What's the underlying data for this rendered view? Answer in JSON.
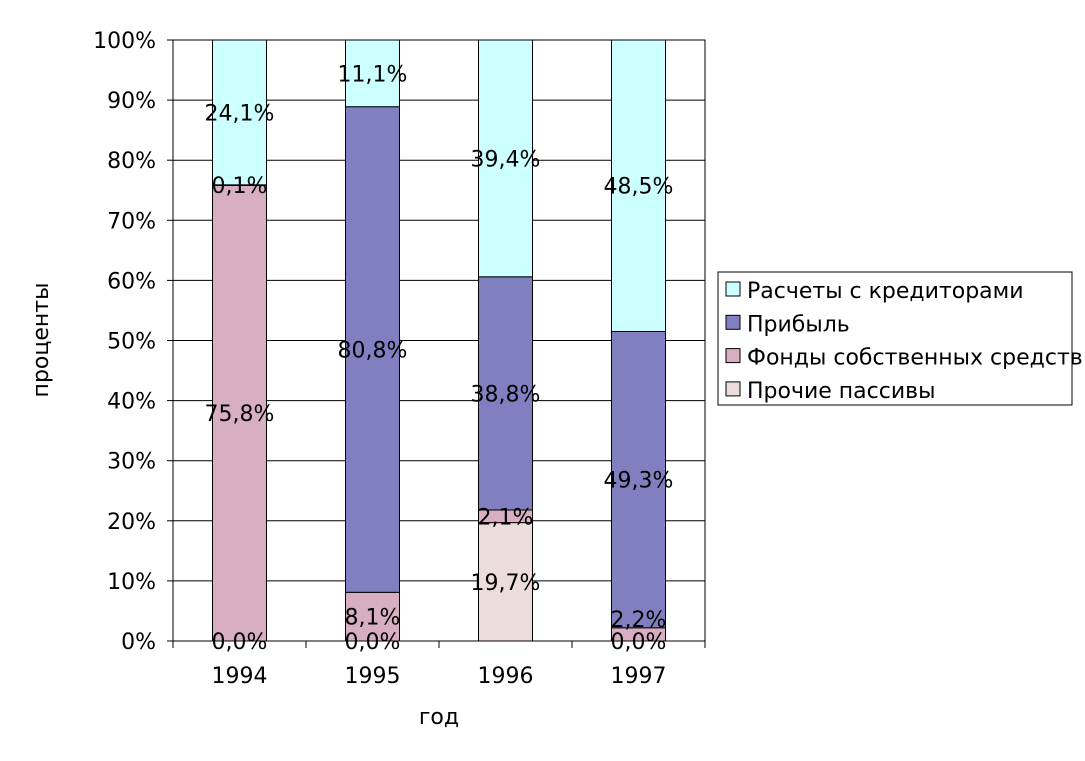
{
  "chart_data": {
    "type": "bar",
    "stacked": true,
    "percent": true,
    "categories": [
      "1994",
      "1995",
      "1996",
      "1997"
    ],
    "xlabel": "год",
    "ylabel": "проценты",
    "ylim": [
      0,
      100
    ],
    "y_ticks": [
      "0%",
      "10%",
      "20%",
      "30%",
      "40%",
      "50%",
      "60%",
      "70%",
      "80%",
      "90%",
      "100%"
    ],
    "grid": true,
    "legend_position": "right",
    "series": [
      {
        "name": "Прочие пассивы",
        "color": "#ecdcdc",
        "values": [
          0.0,
          0.0,
          19.7,
          0.0
        ],
        "labels": [
          "0,0%",
          "0,0%",
          "19,7%",
          "0,0%"
        ]
      },
      {
        "name": "Фонды собственных средств",
        "color": "#d8afc2",
        "values": [
          75.8,
          8.1,
          2.1,
          2.2
        ],
        "labels": [
          "75,8%",
          "8,1%",
          "2,1%",
          "2,2%"
        ]
      },
      {
        "name": "Прибыль",
        "color": "#8080c0",
        "values": [
          0.1,
          80.8,
          38.8,
          49.3
        ],
        "labels": [
          "0,1%",
          "80,8%",
          "38,8%",
          "49,3%"
        ]
      },
      {
        "name": "Расчеты с кредиторами",
        "color": "#ccffff",
        "values": [
          24.1,
          11.1,
          39.4,
          48.5
        ],
        "labels": [
          "24,1%",
          "11,1%",
          "39,4%",
          "48,5%"
        ]
      }
    ]
  }
}
